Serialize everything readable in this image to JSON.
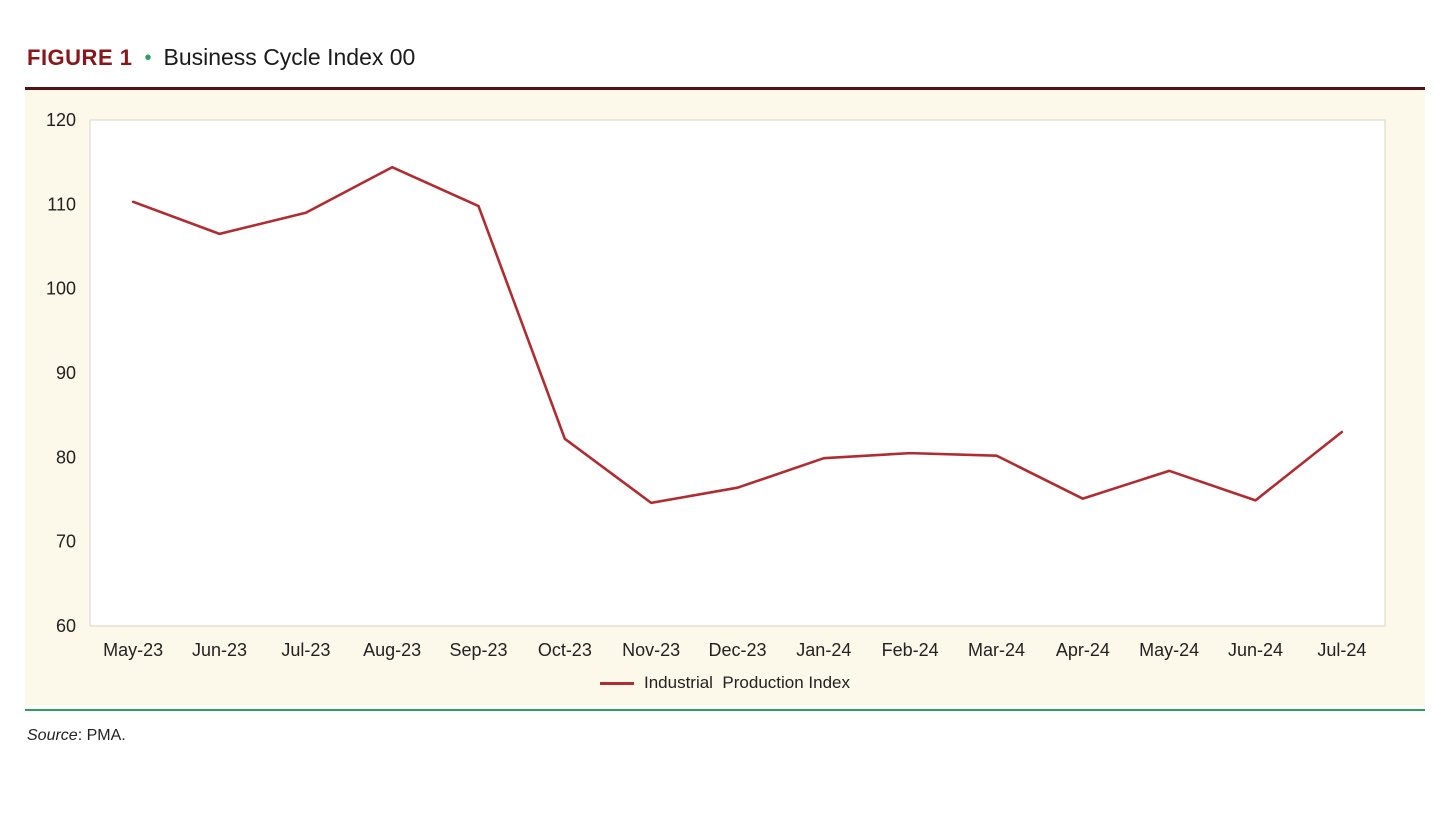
{
  "figure": {
    "label": "FIGURE 1",
    "bullet": "•",
    "title": "Business Cycle Index 00"
  },
  "source": {
    "label": "Source",
    "text": ": PMA."
  },
  "colors": {
    "figure_label": "#8a1619",
    "title_rule": "#4f1216",
    "line": "#b02c30",
    "green": "#2e9e5b",
    "panel_bg": "#fcf8ea"
  },
  "chart_data": {
    "type": "line",
    "categories": [
      "May-23",
      "Jun-23",
      "Jul-23",
      "Aug-23",
      "Sep-23",
      "Oct-23",
      "Nov-23",
      "Dec-23",
      "Jan-24",
      "Feb-24",
      "Mar-24",
      "Apr-24",
      "May-24",
      "Jun-24",
      "Jul-24"
    ],
    "series": [
      {
        "name": "Industrial  Production Index",
        "values": [
          110.3,
          106.5,
          109.0,
          114.4,
          109.8,
          82.2,
          74.6,
          76.4,
          79.9,
          80.5,
          80.2,
          75.1,
          78.4,
          74.9,
          83.0
        ]
      }
    ],
    "title": "Business Cycle Index 00",
    "xlabel": "",
    "ylabel": "",
    "ylim": [
      60,
      120
    ],
    "ytick_step": 10,
    "grid": false,
    "legend_position": "bottom"
  }
}
